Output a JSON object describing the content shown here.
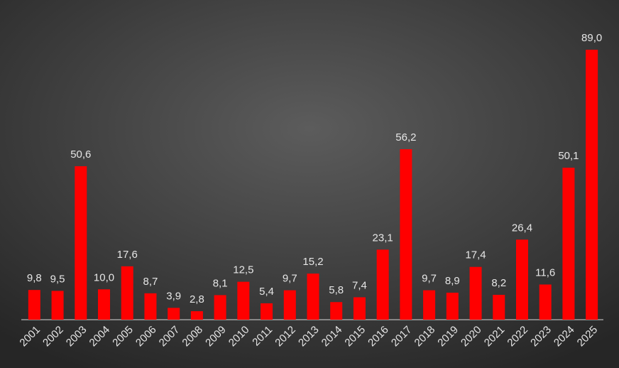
{
  "chart_data": {
    "type": "bar",
    "categories": [
      "2001",
      "2002",
      "2003",
      "2004",
      "2005",
      "2006",
      "2007",
      "2008",
      "2009",
      "2010",
      "2011",
      "2012",
      "2013",
      "2014",
      "2015",
      "2016",
      "2017",
      "2018",
      "2019",
      "2020",
      "2021",
      "2022",
      "2023",
      "2024",
      "2025"
    ],
    "values": [
      9.8,
      9.5,
      50.6,
      10.0,
      17.6,
      8.7,
      3.9,
      2.8,
      8.1,
      12.5,
      5.4,
      9.7,
      15.2,
      5.8,
      7.4,
      23.1,
      56.2,
      9.7,
      8.9,
      17.4,
      8.2,
      26.4,
      11.6,
      50.1,
      89.0
    ],
    "value_labels": [
      "9,8",
      "9,5",
      "50,6",
      "10,0",
      "17,6",
      "8,7",
      "3,9",
      "2,8",
      "8,1",
      "12,5",
      "5,4",
      "9,7",
      "15,2",
      "5,8",
      "7,4",
      "23,1",
      "56,2",
      "9,7",
      "8,9",
      "17,4",
      "8,2",
      "26,4",
      "11,6",
      "50,1",
      "89,0"
    ],
    "color": "#ff0000"
  }
}
